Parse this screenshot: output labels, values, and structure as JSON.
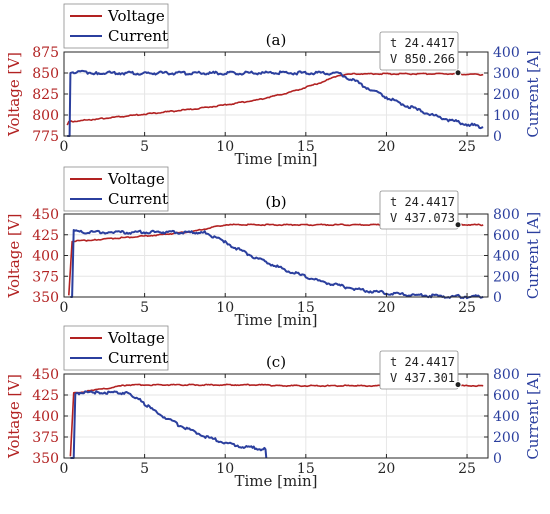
{
  "colors": {
    "voltage": "#b22222",
    "current": "#2b3f9e",
    "grid": "#e6e6e6",
    "axis": "#262626"
  },
  "chart_data": [
    {
      "type": "line",
      "panel_label": "(a)",
      "xlabel": "Time [min]",
      "ylabel_left": "Voltage [V]",
      "ylabel_right": "Current [A]",
      "xlim": [
        0,
        26.3
      ],
      "xticks": [
        0,
        5,
        10,
        15,
        20,
        25
      ],
      "ylim_left": [
        775,
        875
      ],
      "yticks_left": [
        775,
        800,
        825,
        850,
        875
      ],
      "ylim_right": [
        0,
        400
      ],
      "yticks_right": [
        0,
        100,
        200,
        300,
        400
      ],
      "grid": true,
      "legend": [
        "Voltage",
        "Current"
      ],
      "legend_location": "top-left, outside",
      "series": [
        {
          "name": "Voltage",
          "axis": "left",
          "x": [
            0.2,
            0.3,
            2,
            4,
            6,
            8,
            10,
            12,
            14,
            15,
            16,
            17,
            18,
            20,
            22,
            24,
            26
          ],
          "y": [
            788,
            792,
            795,
            799,
            803,
            807,
            812,
            818,
            827,
            833,
            839,
            847,
            849,
            849,
            849,
            849,
            848
          ]
        },
        {
          "name": "Current",
          "axis": "right",
          "x": [
            0.2,
            0.35,
            0.4,
            2,
            5,
            8,
            10,
            12,
            14,
            16,
            17,
            18,
            19,
            20,
            21,
            22,
            23,
            24,
            25,
            26
          ],
          "y": [
            0,
            0,
            305,
            301,
            299,
            300,
            299,
            300,
            300,
            301,
            298,
            264,
            222,
            185,
            152,
            122,
            96,
            74,
            56,
            42
          ]
        }
      ],
      "datatip": {
        "t": "t 24.4417",
        "v": "V 850.266",
        "x": 24.4417,
        "y": 850.266
      }
    },
    {
      "type": "line",
      "panel_label": "(b)",
      "xlabel": "Time [min]",
      "ylabel_left": "Voltage [V]",
      "ylabel_right": "Current [A]",
      "xlim": [
        0,
        26.3
      ],
      "xticks": [
        0,
        5,
        10,
        15,
        20,
        25
      ],
      "ylim_left": [
        350,
        450
      ],
      "yticks_left": [
        350,
        375,
        400,
        425,
        450
      ],
      "ylim_right": [
        0,
        800
      ],
      "yticks_right": [
        0,
        200,
        400,
        600,
        800
      ],
      "grid": true,
      "legend": [
        "Voltage",
        "Current"
      ],
      "legend_location": "top-left, outside",
      "series": [
        {
          "name": "Voltage",
          "axis": "left",
          "x": [
            0.3,
            0.5,
            2,
            4,
            6,
            8,
            9,
            10,
            12,
            15,
            20,
            26
          ],
          "y": [
            352,
            417,
            419,
            422,
            425,
            429,
            433,
            437,
            437,
            437,
            437,
            437
          ]
        },
        {
          "name": "Current",
          "axis": "right",
          "x": [
            0.4,
            0.5,
            0.6,
            3,
            6,
            8.8,
            10,
            11,
            12,
            13,
            14,
            15,
            16,
            17,
            18,
            19,
            20,
            21,
            22,
            23,
            24,
            25,
            26
          ],
          "y": [
            0,
            0,
            630,
            622,
            625,
            620,
            528,
            445,
            372,
            306,
            247,
            194,
            148,
            110,
            80,
            56,
            38,
            25,
            16,
            10,
            6,
            4,
            3
          ]
        }
      ],
      "datatip": {
        "t": "t 24.4417",
        "v": "V 437.073",
        "x": 24.4417,
        "y": 437.073
      }
    },
    {
      "type": "line",
      "panel_label": "(c)",
      "xlabel": "Time [min]",
      "ylabel_left": "Voltage [V]",
      "ylabel_right": "Current [A]",
      "xlim": [
        0,
        26.3
      ],
      "xticks": [
        0,
        5,
        10,
        15,
        20,
        25
      ],
      "ylim_left": [
        350,
        450
      ],
      "yticks_left": [
        350,
        375,
        400,
        425,
        450
      ],
      "ylim_right": [
        0,
        800
      ],
      "yticks_right": [
        0,
        200,
        400,
        600,
        800
      ],
      "grid": true,
      "legend": [
        "Voltage",
        "Current"
      ],
      "legend_location": "top-left, outside",
      "series": [
        {
          "name": "Voltage",
          "axis": "left",
          "x": [
            0.4,
            0.6,
            2,
            3,
            3.9,
            5,
            8,
            12.5,
            13,
            18,
            22,
            26
          ],
          "y": [
            352,
            427,
            431,
            434,
            437,
            437,
            437,
            437,
            436,
            436,
            436,
            436
          ]
        },
        {
          "name": "Current",
          "axis": "right",
          "x": [
            0.4,
            0.6,
            0.7,
            2,
            3.8,
            4.5,
            5,
            6,
            7,
            8,
            9,
            10,
            11,
            12,
            12.5,
            12.55
          ],
          "y": [
            0,
            0,
            620,
            625,
            622,
            575,
            512,
            410,
            324,
            252,
            193,
            146,
            112,
            90,
            82,
            0
          ]
        }
      ],
      "datatip": {
        "t": "t 24.4417",
        "v": "V 437.301",
        "x": 24.4417,
        "y": 437.301
      }
    }
  ]
}
